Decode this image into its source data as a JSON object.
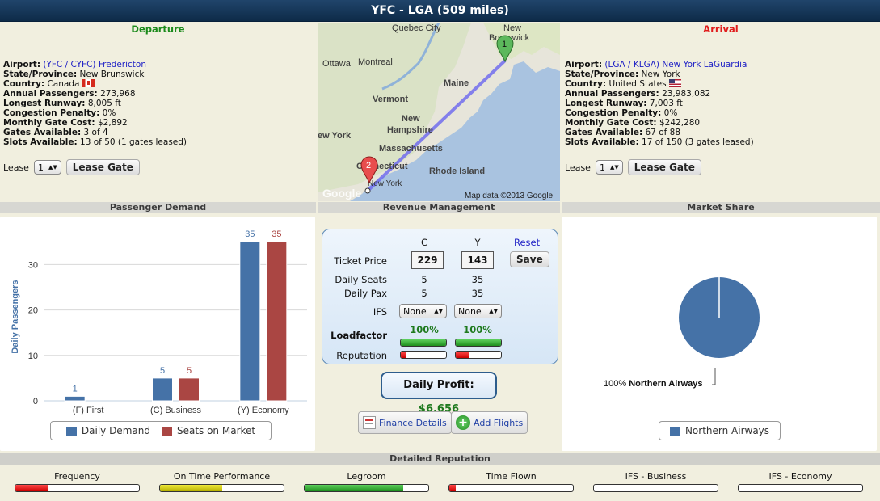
{
  "title": "YFC - LGA (509 miles)",
  "departure": {
    "head": "Departure",
    "airport_label": "Airport:",
    "airport": "(YFC / CYFC) Fredericton",
    "state_label": "State/Province:",
    "state": "New Brunswick",
    "country_label": "Country:",
    "country": "Canada",
    "passengers_label": "Annual Passengers:",
    "passengers": "273,968",
    "runway_label": "Longest Runway:",
    "runway": "8,005 ft",
    "congestion_label": "Congestion Penalty:",
    "congestion": "0%",
    "gate_cost_label": "Monthly Gate Cost:",
    "gate_cost": "$2,892",
    "gates_label": "Gates Available:",
    "gates": "3 of 4",
    "slots_label": "Slots Available:",
    "slots": "13 of 50 (1 gates leased)",
    "lease_label": "Lease",
    "lease_value": "1",
    "lease_button": "Lease Gate"
  },
  "arrival": {
    "head": "Arrival",
    "airport_label": "Airport:",
    "airport": "(LGA / KLGA) New York LaGuardia",
    "state_label": "State/Province:",
    "state": "New York",
    "country_label": "Country:",
    "country": "United States",
    "passengers_label": "Annual Passengers:",
    "passengers": "23,983,082",
    "runway_label": "Longest Runway:",
    "runway": "7,003 ft",
    "congestion_label": "Congestion Penalty:",
    "congestion": "0%",
    "gate_cost_label": "Monthly Gate Cost:",
    "gate_cost": "$242,280",
    "gates_label": "Gates Available:",
    "gates": "67 of 88",
    "slots_label": "Slots Available:",
    "slots": "17 of 150 (3 gates leased)",
    "lease_label": "Lease",
    "lease_value": "1",
    "lease_button": "Lease Gate"
  },
  "map": {
    "labels": [
      "Quebec City",
      "New",
      "Brunswick",
      "Ottawa",
      "Montreal",
      "Maine",
      "Vermont",
      "New",
      "Hampshire",
      "ew York",
      "Massachusetts",
      "Connecticut",
      "Rhode Island",
      "New York"
    ],
    "marker_1": "1",
    "marker_2": "2",
    "logo": "Google",
    "attribution": "Map data ©2013 Google"
  },
  "panels": {
    "passenger_demand": "Passenger Demand",
    "revenue_management": "Revenue Management",
    "market_share": "Market Share",
    "detailed_reputation": "Detailed Reputation"
  },
  "chart_data": [
    {
      "type": "bar",
      "categories": [
        "(F) First",
        "(C) Business",
        "(Y) Economy"
      ],
      "series": [
        {
          "name": "Daily Demand",
          "values": [
            1,
            5,
            35
          ],
          "color": "#4572a7"
        },
        {
          "name": "Seats on Market",
          "values": [
            0,
            5,
            35
          ],
          "color": "#aa4643"
        }
      ],
      "data_labels": [
        [
          "1",
          "5",
          "35"
        ],
        [
          "",
          "5",
          "35"
        ]
      ],
      "ylabel": "Daily Passengers",
      "ylim": [
        0,
        37
      ],
      "yticks": [
        0,
        10,
        20,
        30
      ],
      "grid": true,
      "legend": "bottom"
    },
    {
      "type": "pie",
      "categories": [
        "Northern Airways"
      ],
      "values": [
        100
      ],
      "labels": [
        "100%"
      ],
      "colors": [
        "#4572a7"
      ],
      "legend": "bottom"
    }
  ],
  "revenue": {
    "col_c": "C",
    "col_y": "Y",
    "reset": "Reset",
    "ticket_price_label": "Ticket Price",
    "price_c": "229",
    "price_y": "143",
    "save": "Save",
    "daily_seats_label": "Daily Seats",
    "seats_c": "5",
    "seats_y": "35",
    "daily_pax_label": "Daily Pax",
    "pax_c": "5",
    "pax_y": "35",
    "ifs_label": "IFS",
    "ifs_c": "None",
    "ifs_y": "None",
    "loadfactor_label": "Loadfactor",
    "lf_c": "100%",
    "lf_y": "100%",
    "lf_c_fraction": 1.0,
    "lf_y_fraction": 1.0,
    "reputation_label": "Reputation",
    "rep_c_fraction": 0.13,
    "rep_y_fraction": 0.3,
    "profit_label": "Daily Profit:",
    "profit_value": "$6,656",
    "finance_button": "Finance Details",
    "add_flights_button": "Add Flights"
  },
  "reputation": [
    {
      "label": "Frequency",
      "fraction": 0.27,
      "color": "red"
    },
    {
      "label": "On Time Performance",
      "fraction": 0.5,
      "color": "yellow"
    },
    {
      "label": "Legroom",
      "fraction": 0.8,
      "color": "green"
    },
    {
      "label": "Time Flown",
      "fraction": 0.05,
      "color": "red"
    },
    {
      "label": "IFS - Business",
      "fraction": 0,
      "color": "red"
    },
    {
      "label": "IFS - Economy",
      "fraction": 0,
      "color": "red"
    }
  ]
}
